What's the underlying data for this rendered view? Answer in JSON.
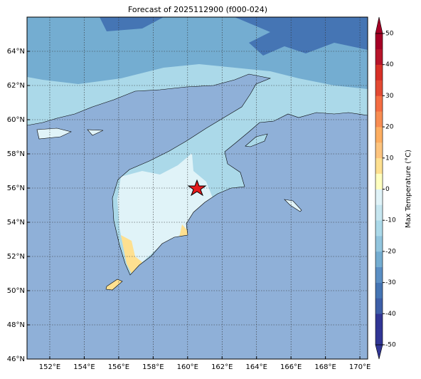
{
  "title": "Forecast of 2025112900 (f000-024)",
  "map": {
    "xlim": [
      150.68,
      170.45
    ],
    "ylim": [
      46,
      66
    ],
    "xticks": [
      {
        "value": 152,
        "label": "152°E"
      },
      {
        "value": 154,
        "label": "154°E"
      },
      {
        "value": 156,
        "label": "156°E"
      },
      {
        "value": 158,
        "label": "158°E"
      },
      {
        "value": 160,
        "label": "160°E"
      },
      {
        "value": 162,
        "label": "162°E"
      },
      {
        "value": 164,
        "label": "164°E"
      },
      {
        "value": 166,
        "label": "166°E"
      },
      {
        "value": 168,
        "label": "168°E"
      },
      {
        "value": 170,
        "label": "170°E"
      }
    ],
    "yticks": [
      {
        "value": 46,
        "label": "46°N"
      },
      {
        "value": 48,
        "label": "48°N"
      },
      {
        "value": 50,
        "label": "50°N"
      },
      {
        "value": 52,
        "label": "52°N"
      },
      {
        "value": 54,
        "label": "54°N"
      },
      {
        "value": 56,
        "label": "56°N"
      },
      {
        "value": 58,
        "label": "58°N"
      },
      {
        "value": 60,
        "label": "60°N"
      },
      {
        "value": 62,
        "label": "62°N"
      },
      {
        "value": 64,
        "label": "64°N"
      }
    ],
    "grid": true
  },
  "colorbar": {
    "label": "Max Temperature (°C)",
    "lim": [
      -50,
      50
    ],
    "ticks": [
      -50,
      -40,
      -30,
      -20,
      -10,
      0,
      10,
      20,
      30,
      40,
      50
    ],
    "colors": [
      "#313695",
      "#313695",
      "#3e5fa8",
      "#4575b4",
      "#5b8fc4",
      "#74add1",
      "#92c5de",
      "#abd9e9",
      "#c6e6f0",
      "#e0f3f8",
      "#ffffbf",
      "#fee090",
      "#fdc47e",
      "#fdae61",
      "#f88d52",
      "#f46d43",
      "#e34a33",
      "#d73027",
      "#b7152b",
      "#a50026"
    ]
  }
}
